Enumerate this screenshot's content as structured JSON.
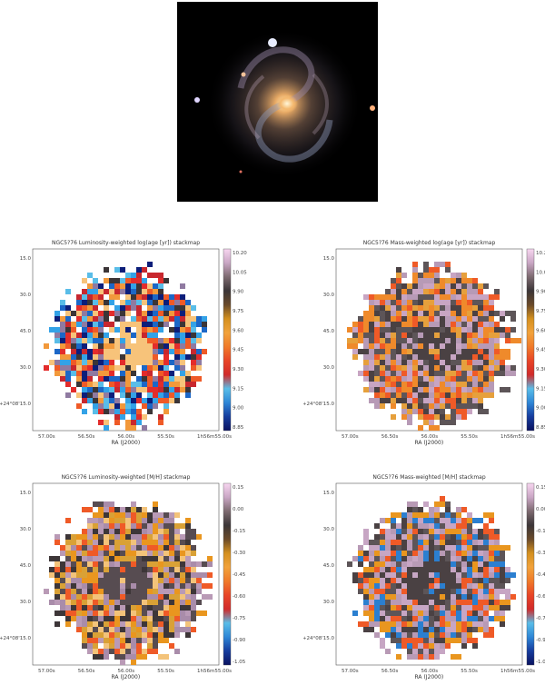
{
  "galaxy_image": {
    "stars": [
      {
        "name": "star-a",
        "color": "#e8ecff"
      },
      {
        "name": "star-b",
        "color": "#f3c39a"
      },
      {
        "name": "star-c",
        "color": "#e0d6ff"
      },
      {
        "name": "star-d",
        "color": "#ffb07a"
      }
    ]
  },
  "panels": [
    {
      "id": "p1",
      "title": "NGC5?76 Luminosity-weighted log(age [yr]) stackmap",
      "xlabel": "RA (J2000)",
      "xticks": [
        "57.00s",
        "56.50s",
        "56.00s",
        "55.50s",
        "1h56m55.00s"
      ],
      "yticks": [
        "15.0",
        "30.0",
        "45.0",
        "30.0",
        "+24°08'15.0"
      ],
      "cbar_ticks": [
        "10.20",
        "10.05",
        "9.90",
        "9.75",
        "9.60",
        "9.45",
        "9.30",
        "9.15",
        "9.00",
        "8.85"
      ],
      "palette": "age_lw",
      "colors": [
        "#f7c37a",
        "#f2993b",
        "#ef5a27",
        "#e32c2b",
        "#c8272e",
        "#33a2e7",
        "#59bde8",
        "#1c67c7",
        "#0c1e7a",
        "#8f7aa1",
        "#3b3537"
      ]
    },
    {
      "id": "p2",
      "title": "NGC5?76 Mass-weighted log(age [yr]) stackmap",
      "xlabel": "RA (J2000)",
      "xticks": [
        "57.00s",
        "56.50s",
        "56.00s",
        "55.50s",
        "1h56m55.00s"
      ],
      "yticks": [
        "15.0",
        "30.0",
        "45.0",
        "30.0",
        "+24°08'15.0"
      ],
      "cbar_ticks": [
        "10.20",
        "10.05",
        "9.90",
        "9.75",
        "9.60",
        "9.45",
        "9.30",
        "9.15",
        "9.00",
        "8.85"
      ],
      "palette": "age_mw",
      "colors": [
        "#c8a5c3",
        "#b79ab6",
        "#4a4143",
        "#5d5558",
        "#ef8a2b",
        "#e6a03c",
        "#ef5a27"
      ]
    },
    {
      "id": "p3",
      "title": "NGC5?76 Luminosity-weighted [M/H] stackmap",
      "xlabel": "RA (J2000)",
      "xticks": [
        "57.00s",
        "56.50s",
        "56.00s",
        "55.50s",
        "1h56m55.00s"
      ],
      "yticks": [
        "15.0",
        "30.0",
        "45.0",
        "30.0",
        "+24°08'15.0"
      ],
      "cbar_ticks": [
        "0.15",
        "0.00",
        "-0.15",
        "-0.30",
        "-0.45",
        "-0.60",
        "-0.75",
        "-0.90",
        "-1.05"
      ],
      "palette": "mh_lw",
      "colors": [
        "#b99ab6",
        "#a98caa",
        "#574c51",
        "#3d3638",
        "#e9961f",
        "#d9a136",
        "#ef5a27",
        "#f3c37a"
      ]
    },
    {
      "id": "p4",
      "title": "NGC5?76 Mass-weighted [M/H] stackmap",
      "xlabel": "RA (J2000)",
      "xticks": [
        "57.00s",
        "56.50s",
        "56.00s",
        "55.50s",
        "1h56m55.00s"
      ],
      "yticks": [
        "15.0",
        "30.0",
        "45.0",
        "30.0",
        "+24°08'15.0"
      ],
      "cbar_ticks": [
        "0.15",
        "0.00",
        "-0.15",
        "-0.30",
        "-0.45",
        "-0.60",
        "-0.75",
        "-0.90",
        "-1.05"
      ],
      "palette": "mh_mw",
      "colors": [
        "#c7a6c4",
        "#b89ab5",
        "#4a4143",
        "#5d5558",
        "#e9961f",
        "#ef5a27",
        "#2b7fd0"
      ]
    }
  ],
  "colormap": [
    "#f7d6f0",
    "#c9a6c4",
    "#7d6a70",
    "#3b3537",
    "#6a4a2a",
    "#d4901f",
    "#f1a23b",
    "#f07a2a",
    "#e84527",
    "#d12a2a",
    "#59bde8",
    "#2e86d6",
    "#163c9e",
    "#0a1260"
  ]
}
